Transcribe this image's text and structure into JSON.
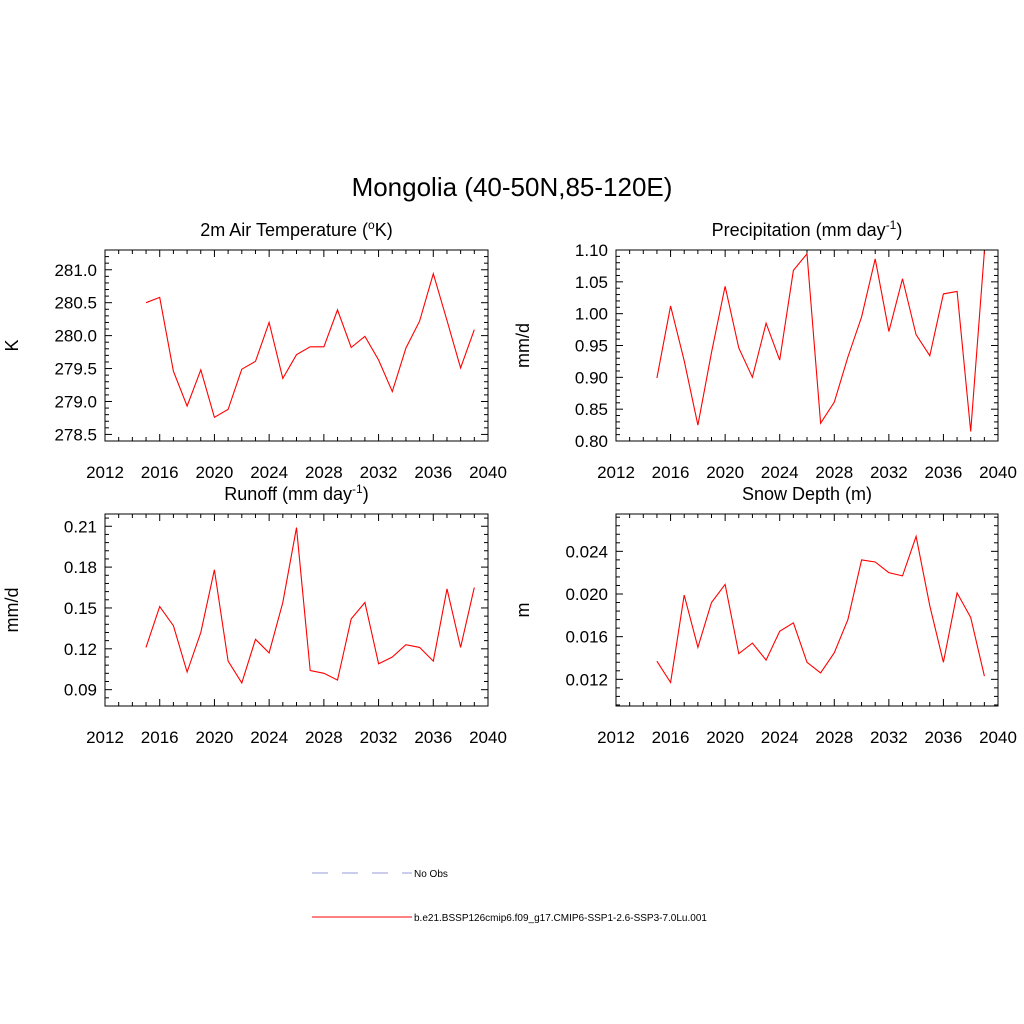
{
  "title": "Mongolia (40-50N,85-120E)",
  "legend": [
    {
      "label": "No Obs",
      "color": "#9999dd",
      "dash": "dashed"
    },
    {
      "label": "b.e21.BSSP126cmip6.f09_g17.CMIP6-SSP1-2.6-SSP3-7.0Lu.001",
      "color": "#ff0000",
      "dash": "solid"
    }
  ],
  "chart_data": [
    {
      "type": "line",
      "title_main": "2m Air Temperature (",
      "title_sup": "o",
      "title_end": "K)",
      "ylabel": "K",
      "xlim": [
        2012,
        2040
      ],
      "xticks": [
        2012,
        2016,
        2020,
        2024,
        2028,
        2032,
        2036,
        2040
      ],
      "xtick_labels": [
        "2012",
        "2016",
        "2020",
        "2024",
        "2028",
        "2032",
        "2036",
        "2040"
      ],
      "ylim": [
        278.4,
        281.3
      ],
      "yticks": [
        278.5,
        279.0,
        279.5,
        280.0,
        280.5,
        281.0
      ],
      "ytick_labels": [
        "278.5",
        "279.0",
        "279.5",
        "280.0",
        "280.5",
        "281.0"
      ],
      "color": "#ff0000",
      "x": [
        2015,
        2016,
        2017,
        2018,
        2019,
        2020,
        2021,
        2022,
        2023,
        2024,
        2025,
        2026,
        2027,
        2028,
        2029,
        2030,
        2031,
        2032,
        2033,
        2034,
        2035,
        2036,
        2037,
        2038,
        2039
      ],
      "y": [
        280.5,
        280.58,
        279.46,
        278.93,
        279.48,
        278.76,
        278.88,
        279.49,
        279.61,
        280.2,
        279.35,
        279.71,
        279.83,
        279.83,
        280.39,
        279.82,
        279.99,
        279.63,
        279.15,
        279.81,
        280.22,
        280.94,
        280.23,
        279.51,
        280.09
      ]
    },
    {
      "type": "line",
      "title_main": "Precipitation (mm day",
      "title_sup": "-1",
      "title_end": ")",
      "ylabel": "mm/d",
      "xlim": [
        2012,
        2040
      ],
      "xticks": [
        2012,
        2016,
        2020,
        2024,
        2028,
        2032,
        2036,
        2040
      ],
      "xtick_labels": [
        "2012",
        "2016",
        "2020",
        "2024",
        "2028",
        "2032",
        "2036",
        "2040"
      ],
      "ylim": [
        0.8,
        1.1
      ],
      "yticks": [
        0.8,
        0.85,
        0.9,
        0.95,
        1.0,
        1.05,
        1.1
      ],
      "ytick_labels": [
        "0.80",
        "0.85",
        "0.90",
        "0.95",
        "1.00",
        "1.05",
        "1.10"
      ],
      "color": "#ff0000",
      "x": [
        2015,
        2016,
        2017,
        2018,
        2019,
        2020,
        2021,
        2022,
        2023,
        2024,
        2025,
        2026,
        2027,
        2028,
        2029,
        2030,
        2031,
        2032,
        2033,
        2034,
        2035,
        2036,
        2037,
        2038,
        2039
      ],
      "y": [
        0.899,
        1.012,
        0.926,
        0.825,
        0.939,
        1.043,
        0.946,
        0.9,
        0.985,
        0.927,
        1.068,
        1.094,
        0.828,
        0.861,
        0.932,
        0.995,
        1.086,
        0.972,
        1.055,
        0.967,
        0.934,
        1.031,
        1.035,
        0.815,
        1.098
      ]
    },
    {
      "type": "line",
      "title_main": "Runoff (mm day",
      "title_sup": "-1",
      "title_end": ")",
      "ylabel": "mm/d",
      "xlim": [
        2012,
        2040
      ],
      "xticks": [
        2012,
        2016,
        2020,
        2024,
        2028,
        2032,
        2036,
        2040
      ],
      "xtick_labels": [
        "2012",
        "2016",
        "2020",
        "2024",
        "2028",
        "2032",
        "2036",
        "2040"
      ],
      "ylim": [
        0.078,
        0.219
      ],
      "yticks": [
        0.09,
        0.12,
        0.15,
        0.18,
        0.21
      ],
      "ytick_labels": [
        "0.09",
        "0.12",
        "0.15",
        "0.18",
        "0.21"
      ],
      "color": "#ff0000",
      "x": [
        2015,
        2016,
        2017,
        2018,
        2019,
        2020,
        2021,
        2022,
        2023,
        2024,
        2025,
        2026,
        2027,
        2028,
        2029,
        2030,
        2031,
        2032,
        2033,
        2034,
        2035,
        2036,
        2037,
        2038,
        2039
      ],
      "y": [
        0.121,
        0.151,
        0.137,
        0.103,
        0.132,
        0.178,
        0.111,
        0.095,
        0.127,
        0.117,
        0.154,
        0.209,
        0.104,
        0.102,
        0.097,
        0.142,
        0.154,
        0.109,
        0.114,
        0.123,
        0.121,
        0.111,
        0.164,
        0.121,
        0.165
      ]
    },
    {
      "type": "line",
      "title_main": "Snow Depth (m)",
      "title_sup": "",
      "title_end": "",
      "ylabel": "m",
      "xlim": [
        2012,
        2040
      ],
      "xticks": [
        2012,
        2016,
        2020,
        2024,
        2028,
        2032,
        2036,
        2040
      ],
      "xtick_labels": [
        "2012",
        "2016",
        "2020",
        "2024",
        "2028",
        "2032",
        "2036",
        "2040"
      ],
      "ylim": [
        0.0095,
        0.0275
      ],
      "yticks": [
        0.012,
        0.016,
        0.02,
        0.024
      ],
      "ytick_labels": [
        "0.012",
        "0.016",
        "0.020",
        "0.024"
      ],
      "color": "#ff0000",
      "x": [
        2015,
        2016,
        2017,
        2018,
        2019,
        2020,
        2021,
        2022,
        2023,
        2024,
        2025,
        2026,
        2027,
        2028,
        2029,
        2030,
        2031,
        2032,
        2033,
        2034,
        2035,
        2036,
        2037,
        2038,
        2039
      ],
      "y": [
        0.0137,
        0.0117,
        0.0199,
        0.015,
        0.0192,
        0.0209,
        0.0144,
        0.0154,
        0.0138,
        0.0165,
        0.0173,
        0.0136,
        0.0126,
        0.0145,
        0.0176,
        0.0232,
        0.023,
        0.022,
        0.0217,
        0.0254,
        0.0189,
        0.0136,
        0.0201,
        0.0178,
        0.0123
      ]
    }
  ]
}
